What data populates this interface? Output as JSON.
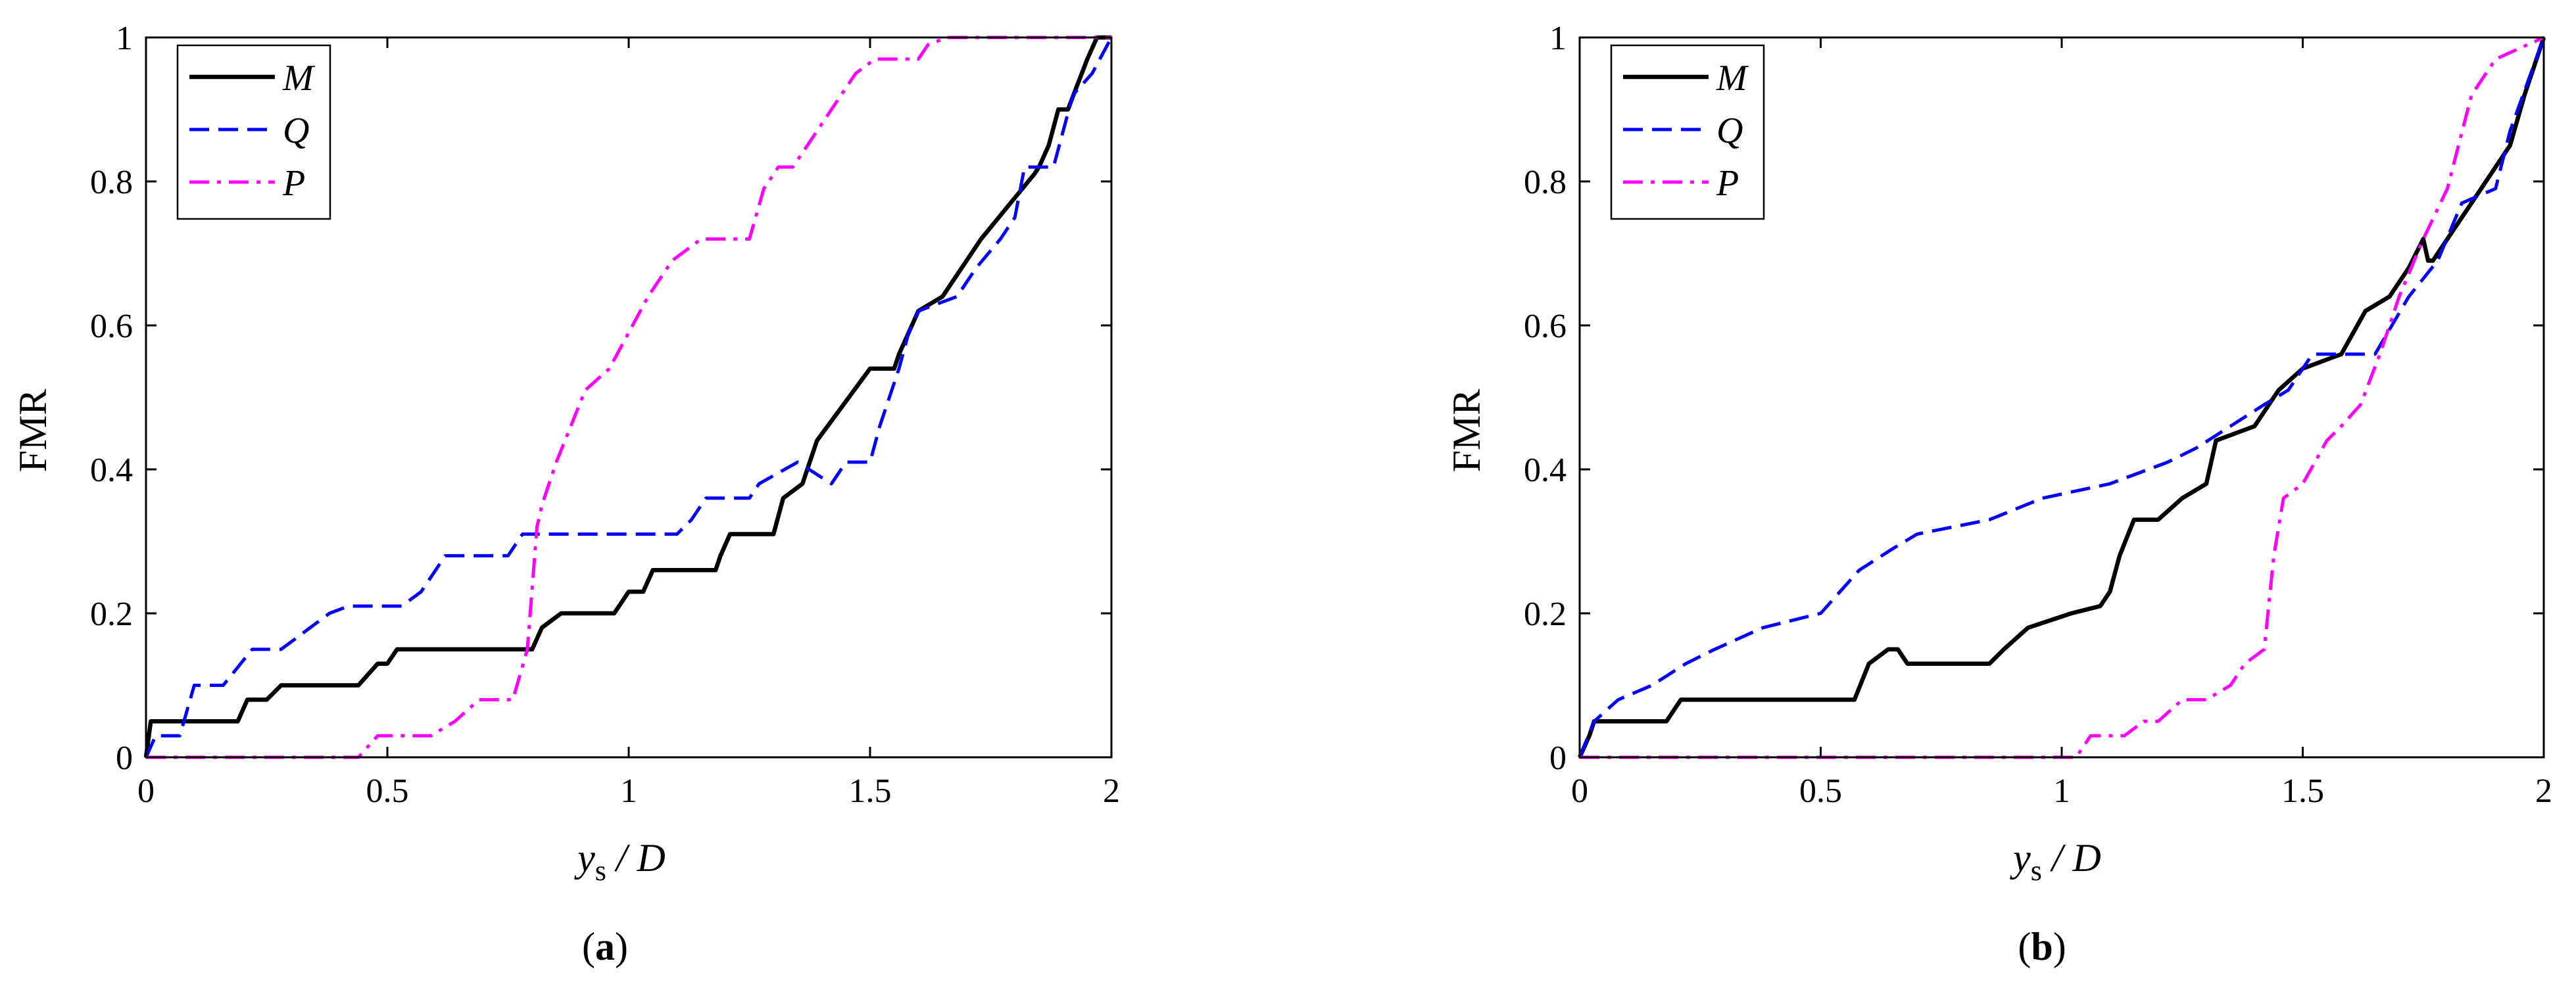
{
  "chart_data": [
    {
      "type": "line",
      "panel_label": {
        "open": "(",
        "letter": "a",
        "close": ")"
      },
      "ylabel": "FMR",
      "xlabel": {
        "var": "y",
        "sub": "s",
        "rest": " / D"
      },
      "xlim": [
        0,
        2
      ],
      "ylim": [
        0,
        1
      ],
      "xticks": [
        0,
        0.5,
        1,
        1.5,
        2
      ],
      "yticks": [
        0,
        0.2,
        0.4,
        0.6,
        0.8,
        1
      ],
      "xtick_labels": [
        "0",
        "0.5",
        "1",
        "1.5",
        "2"
      ],
      "ytick_labels": [
        "0",
        "0.2",
        "0.4",
        "0.6",
        "0.8",
        "1"
      ],
      "grid": false,
      "legend_position": "top-left",
      "series": [
        {
          "name": "M",
          "color": "#000000",
          "dash": "solid",
          "x": [
            0,
            0.01,
            0.02,
            0.19,
            0.21,
            0.25,
            0.28,
            0.3,
            0.44,
            0.48,
            0.5,
            0.52,
            0.8,
            0.82,
            0.86,
            0.97,
            1.0,
            1.03,
            1.05,
            1.18,
            1.19,
            1.21,
            1.3,
            1.32,
            1.36,
            1.39,
            1.5,
            1.55,
            1.56,
            1.6,
            1.65,
            1.73,
            1.84,
            1.85,
            1.87,
            1.89,
            1.91,
            1.95,
            1.97,
            2.0
          ],
          "y": [
            0,
            0.05,
            0.05,
            0.05,
            0.08,
            0.08,
            0.1,
            0.1,
            0.1,
            0.13,
            0.13,
            0.15,
            0.15,
            0.18,
            0.2,
            0.2,
            0.23,
            0.23,
            0.26,
            0.26,
            0.28,
            0.31,
            0.31,
            0.36,
            0.38,
            0.44,
            0.54,
            0.54,
            0.56,
            0.62,
            0.64,
            0.72,
            0.81,
            0.82,
            0.85,
            0.9,
            0.9,
            0.97,
            1.0,
            1.0
          ]
        },
        {
          "name": "Q",
          "color": "#0000ff",
          "dash": "dashed",
          "x": [
            0,
            0.02,
            0.07,
            0.1,
            0.16,
            0.22,
            0.28,
            0.38,
            0.42,
            0.53,
            0.57,
            0.62,
            0.75,
            0.78,
            1.1,
            1.13,
            1.16,
            1.25,
            1.27,
            1.35,
            1.42,
            1.45,
            1.5,
            1.52,
            1.56,
            1.58,
            1.6,
            1.68,
            1.72,
            1.77,
            1.8,
            1.82,
            1.88,
            1.92,
            1.96,
            2.0
          ],
          "y": [
            0,
            0.03,
            0.03,
            0.1,
            0.1,
            0.15,
            0.15,
            0.2,
            0.21,
            0.21,
            0.23,
            0.28,
            0.28,
            0.31,
            0.31,
            0.33,
            0.36,
            0.36,
            0.38,
            0.41,
            0.38,
            0.41,
            0.41,
            0.46,
            0.54,
            0.59,
            0.62,
            0.64,
            0.68,
            0.72,
            0.75,
            0.82,
            0.82,
            0.92,
            0.95,
            1.0
          ]
        },
        {
          "name": "P",
          "color": "#ff00ff",
          "dash": "dashdot",
          "x": [
            0,
            0.44,
            0.48,
            0.59,
            0.64,
            0.69,
            0.73,
            0.76,
            0.79,
            0.81,
            0.82,
            0.85,
            0.88,
            0.91,
            0.96,
            1.0,
            1.04,
            1.09,
            1.15,
            1.25,
            1.28,
            1.31,
            1.34,
            1.39,
            1.42,
            1.47,
            1.51,
            1.6,
            1.62,
            1.66,
            1.7,
            1.8,
            2.0
          ],
          "y": [
            0,
            0,
            0.03,
            0.03,
            0.05,
            0.08,
            0.08,
            0.08,
            0.15,
            0.32,
            0.35,
            0.41,
            0.46,
            0.51,
            0.54,
            0.59,
            0.64,
            0.69,
            0.72,
            0.72,
            0.79,
            0.82,
            0.82,
            0.87,
            0.9,
            0.95,
            0.97,
            0.97,
            0.99,
            1.0,
            1.0,
            1.0,
            1.0
          ]
        }
      ]
    },
    {
      "type": "line",
      "panel_label": {
        "open": "(",
        "letter": "b",
        "close": ")"
      },
      "ylabel": "FMR",
      "xlabel": {
        "var": "y",
        "sub": "s",
        "rest": " / D"
      },
      "xlim": [
        0,
        2
      ],
      "ylim": [
        0,
        1
      ],
      "xticks": [
        0,
        0.5,
        1,
        1.5,
        2
      ],
      "yticks": [
        0,
        0.2,
        0.4,
        0.6,
        0.8,
        1
      ],
      "xtick_labels": [
        "0",
        "0.5",
        "1",
        "1.5",
        "2"
      ],
      "ytick_labels": [
        "0",
        "0.2",
        "0.4",
        "0.6",
        "0.8",
        "1"
      ],
      "grid": false,
      "legend_position": "top-left",
      "series": [
        {
          "name": "M",
          "color": "#000000",
          "dash": "solid",
          "x": [
            0,
            0.02,
            0.03,
            0.18,
            0.21,
            0.57,
            0.6,
            0.64,
            0.66,
            0.68,
            0.85,
            0.88,
            0.93,
            1.02,
            1.08,
            1.1,
            1.12,
            1.15,
            1.2,
            1.25,
            1.3,
            1.32,
            1.4,
            1.45,
            1.5,
            1.58,
            1.63,
            1.68,
            1.72,
            1.75,
            1.76,
            1.77,
            1.8,
            1.85,
            1.9,
            1.93,
            1.96,
            2.0
          ],
          "y": [
            0,
            0.03,
            0.05,
            0.05,
            0.08,
            0.08,
            0.13,
            0.15,
            0.15,
            0.13,
            0.13,
            0.15,
            0.18,
            0.2,
            0.21,
            0.23,
            0.28,
            0.33,
            0.33,
            0.36,
            0.38,
            0.44,
            0.46,
            0.51,
            0.54,
            0.56,
            0.62,
            0.64,
            0.68,
            0.72,
            0.69,
            0.69,
            0.72,
            0.77,
            0.82,
            0.85,
            0.92,
            1.0
          ]
        },
        {
          "name": "Q",
          "color": "#0000ff",
          "dash": "dashed",
          "x": [
            0,
            0.03,
            0.08,
            0.15,
            0.22,
            0.28,
            0.38,
            0.5,
            0.58,
            0.65,
            0.7,
            0.85,
            0.96,
            1.1,
            1.22,
            1.28,
            1.35,
            1.42,
            1.47,
            1.52,
            1.58,
            1.65,
            1.72,
            1.78,
            1.83,
            1.9,
            1.93,
            2.0
          ],
          "y": [
            0,
            0.05,
            0.08,
            0.1,
            0.13,
            0.15,
            0.18,
            0.2,
            0.26,
            0.29,
            0.31,
            0.33,
            0.36,
            0.38,
            0.41,
            0.43,
            0.46,
            0.49,
            0.51,
            0.56,
            0.56,
            0.56,
            0.64,
            0.69,
            0.77,
            0.79,
            0.87,
            1.0
          ]
        },
        {
          "name": "P",
          "color": "#ff00ff",
          "dash": "dashdot",
          "x": [
            0,
            1.03,
            1.06,
            1.13,
            1.17,
            1.2,
            1.25,
            1.3,
            1.35,
            1.38,
            1.42,
            1.44,
            1.46,
            1.5,
            1.55,
            1.58,
            1.62,
            1.66,
            1.7,
            1.75,
            1.8,
            1.85,
            1.9,
            2.0
          ],
          "y": [
            0,
            0,
            0.03,
            0.03,
            0.05,
            0.05,
            0.08,
            0.08,
            0.1,
            0.13,
            0.15,
            0.28,
            0.36,
            0.38,
            0.44,
            0.46,
            0.49,
            0.56,
            0.64,
            0.72,
            0.79,
            0.92,
            0.97,
            1.0
          ]
        }
      ]
    }
  ]
}
